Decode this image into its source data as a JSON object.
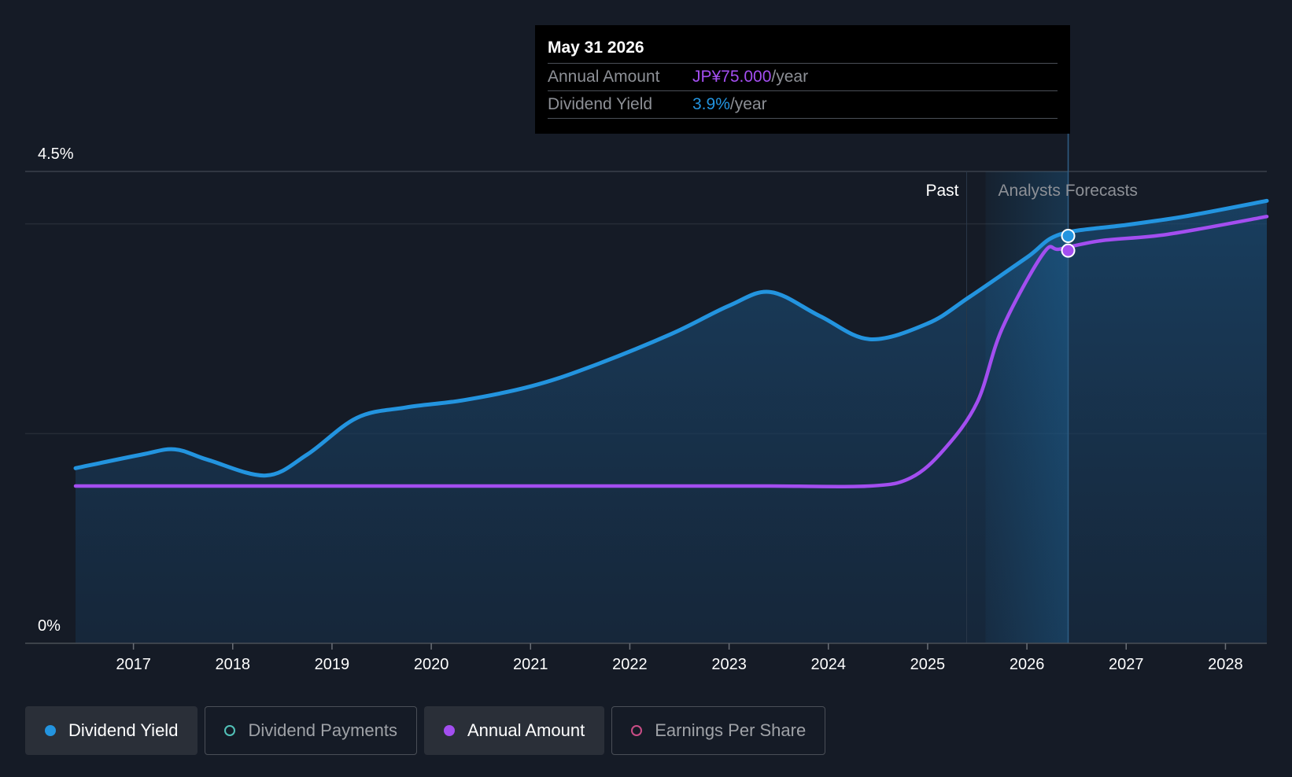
{
  "tooltip": {
    "date": "May 31 2026",
    "annual_label": "Annual Amount",
    "annual_value": "JP¥75.000",
    "annual_unit": "/year",
    "yield_label": "Dividend Yield",
    "yield_value": "3.9%",
    "yield_unit": "/year"
  },
  "legend": [
    {
      "label": "Dividend Yield",
      "color": "#2394df",
      "active": true,
      "filled": true
    },
    {
      "label": "Dividend Payments",
      "color": "#52c1b8",
      "active": false,
      "filled": false
    },
    {
      "label": "Annual Amount",
      "color": "#a34ef0",
      "active": true,
      "filled": true
    },
    {
      "label": "Earnings Per Share",
      "color": "#c94d86",
      "active": false,
      "filled": false
    }
  ],
  "colors": {
    "yield": "#2394df",
    "annual": "#a34ef0",
    "background": "#151b26"
  },
  "chart_data": {
    "type": "line",
    "x_range": [
      "2016-06",
      "2028-06"
    ],
    "y_range": [
      0,
      4.5
    ],
    "y_unit": "%",
    "y_ticks": [
      {
        "value": 4.5,
        "label": "4.5%"
      },
      {
        "value": 0,
        "label": "0%"
      }
    ],
    "x_ticks": [
      "2017",
      "2018",
      "2019",
      "2020",
      "2021",
      "2022",
      "2023",
      "2024",
      "2025",
      "2026",
      "2027",
      "2028"
    ],
    "past_label": "Past",
    "forecast_label": "Analysts Forecasts",
    "forecast_start": "2025-08",
    "selected_date": "2026-05-31",
    "series": [
      {
        "name": "Dividend Yield",
        "key": "yield",
        "points": [
          [
            "2016-06",
            1.67
          ],
          [
            "2017-02",
            1.8
          ],
          [
            "2017-06",
            1.85
          ],
          [
            "2017-10",
            1.75
          ],
          [
            "2018-05",
            1.6
          ],
          [
            "2018-10",
            1.8
          ],
          [
            "2019-04",
            2.15
          ],
          [
            "2019-10",
            2.25
          ],
          [
            "2020-05",
            2.32
          ],
          [
            "2021-01",
            2.45
          ],
          [
            "2021-08",
            2.63
          ],
          [
            "2022-06",
            2.95
          ],
          [
            "2023-01",
            3.22
          ],
          [
            "2023-06",
            3.35
          ],
          [
            "2023-12",
            3.12
          ],
          [
            "2024-06",
            2.9
          ],
          [
            "2025-01",
            3.05
          ],
          [
            "2025-06",
            3.3
          ],
          [
            "2026-01",
            3.68
          ],
          [
            "2026-05",
            3.9
          ],
          [
            "2027-01",
            3.99
          ],
          [
            "2027-08",
            4.07
          ],
          [
            "2028-06",
            4.22
          ]
        ]
      },
      {
        "name": "Annual Amount",
        "key": "annual",
        "points": [
          [
            "2016-06",
            1.5
          ],
          [
            "2017-06",
            1.5
          ],
          [
            "2018-06",
            1.5
          ],
          [
            "2019-06",
            1.5
          ],
          [
            "2020-06",
            1.5
          ],
          [
            "2021-06",
            1.5
          ],
          [
            "2022-06",
            1.5
          ],
          [
            "2023-06",
            1.5
          ],
          [
            "2024-06",
            1.5
          ],
          [
            "2024-11",
            1.58
          ],
          [
            "2025-03",
            1.85
          ],
          [
            "2025-07",
            2.3
          ],
          [
            "2025-10",
            3.0
          ],
          [
            "2026-03",
            3.72
          ],
          [
            "2026-05",
            3.76
          ],
          [
            "2026-10",
            3.84
          ],
          [
            "2027-06",
            3.9
          ],
          [
            "2028-06",
            4.07
          ]
        ]
      }
    ]
  }
}
